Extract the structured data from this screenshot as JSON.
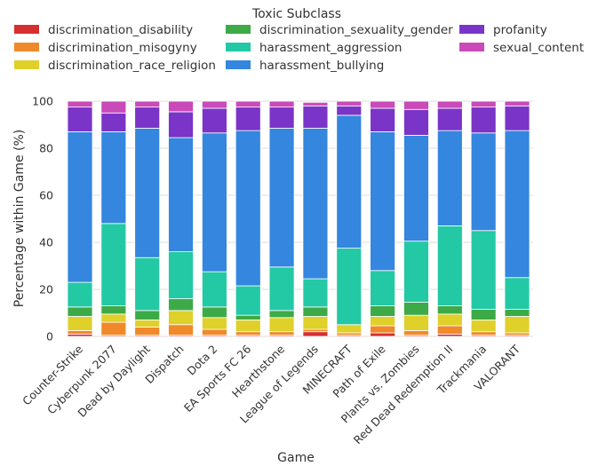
{
  "chart_data": {
    "type": "bar",
    "stacked": true,
    "xlabel": "Game",
    "ylabel": "Percentage within Game (%)",
    "ylim": [
      0,
      100
    ],
    "yticks": [
      0,
      20,
      40,
      60,
      80,
      100
    ],
    "grid": "horizontal",
    "legend_title": "Toxic Subclass",
    "legend_position": "top",
    "categories": [
      "Counter-Strike",
      "Cyberpunk 2077",
      "Dead by Daylight",
      "Dispatch",
      "Dota 2",
      "EA Sports FC 26",
      "Hearthstone",
      "League of Legends",
      "MINECRAFT",
      "Path of Exile",
      "Plants vs. Zombies",
      "Red Dead Redemption II",
      "Trackmania",
      "VALORANT"
    ],
    "series": [
      {
        "name": "discrimination_disability",
        "color": "#d62f2f",
        "values": [
          1,
          0.5,
          0.5,
          0.5,
          0.5,
          0.5,
          0.5,
          2,
          0.5,
          1.5,
          0.5,
          1,
          0.5,
          0.5
        ]
      },
      {
        "name": "discrimination_misogyny",
        "color": "#f0892a",
        "values": [
          1.5,
          5.5,
          3.5,
          4.5,
          2.5,
          1.5,
          1.5,
          1,
          1,
          3,
          2,
          3.5,
          1.5,
          1
        ]
      },
      {
        "name": "discrimination_race_religion",
        "color": "#e0d02a",
        "values": [
          6,
          3.5,
          3,
          6,
          5,
          5,
          6,
          5.5,
          3.5,
          4,
          6.5,
          5,
          5,
          7
        ]
      },
      {
        "name": "discrimination_sexuality_gender",
        "color": "#3daa48",
        "values": [
          4,
          3.5,
          4,
          5,
          4.5,
          2,
          3,
          4,
          0,
          4.5,
          5.5,
          3.5,
          4.5,
          3
        ]
      },
      {
        "name": "harassment_aggression",
        "color": "#23c9a5",
        "values": [
          10.5,
          35,
          22.5,
          20,
          15,
          12.5,
          18.5,
          12,
          32.5,
          15,
          26,
          34,
          33.5,
          13.5
        ]
      },
      {
        "name": "harassment_bullying",
        "color": "#3486de",
        "values": [
          64,
          39,
          55,
          48.5,
          59,
          66,
          59,
          64,
          56.5,
          59,
          45,
          40.5,
          41.5,
          62.5
        ]
      },
      {
        "name": "profanity",
        "color": "#7a34c7",
        "values": [
          10.5,
          8,
          9,
          11,
          10.5,
          10,
          9,
          9.5,
          4,
          10,
          11,
          9.5,
          11,
          10.5
        ]
      },
      {
        "name": "sexual_content",
        "color": "#c94ab8",
        "values": [
          2.5,
          5,
          2.5,
          4.5,
          3,
          2.5,
          2.5,
          1.5,
          2,
          3,
          3.5,
          3,
          2.5,
          2
        ]
      }
    ]
  }
}
